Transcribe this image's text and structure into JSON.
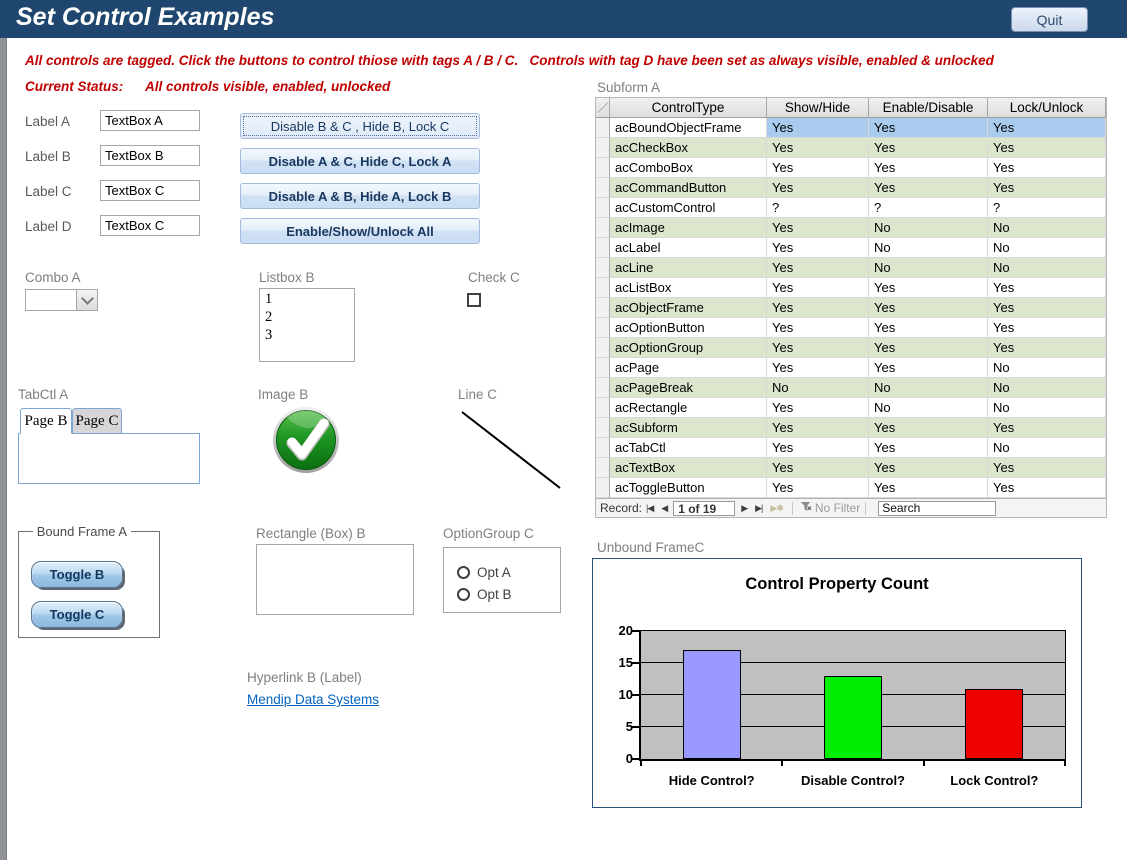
{
  "window": {
    "title": "Set Control Examples",
    "quit": "Quit"
  },
  "instructions": "All controls are tagged. Click the buttons to control thiose with tags A / B / C.   Controls with tag D have been set as always visible, enabled & unlocked",
  "status": {
    "label": "Current Status:",
    "value": "All controls visible, enabled, unlocked"
  },
  "fields": [
    {
      "label": "Label A",
      "value": "TextBox A"
    },
    {
      "label": "Label B",
      "value": "TextBox B"
    },
    {
      "label": "Label C",
      "value": "TextBox C"
    },
    {
      "label": "Label D",
      "value": "TextBox C"
    }
  ],
  "action_buttons": [
    "Disable B & C , Hide B, Lock C",
    "Disable A & C, Hide C, Lock A",
    "Disable A & B, Hide A, Lock B",
    "Enable/Show/Unlock All"
  ],
  "combo": {
    "label": "Combo A",
    "value": ""
  },
  "listbox": {
    "label": "Listbox B",
    "items": [
      "1",
      "2",
      "3"
    ]
  },
  "checkbox": {
    "label": "Check C",
    "checked": false
  },
  "tab_control": {
    "label": "TabCtl A",
    "tabs": [
      "Page B",
      "Page C"
    ],
    "active": 0
  },
  "image": {
    "label": "Image B",
    "icon": "green-check-circle"
  },
  "line": {
    "label": "Line C"
  },
  "bound_frame": {
    "label": "Bound Frame A",
    "toggles": [
      "Toggle B",
      "Toggle C"
    ]
  },
  "rectangle": {
    "label": "Rectangle (Box) B"
  },
  "option_group": {
    "label": "OptionGroup C",
    "options": [
      "Opt A",
      "Opt B"
    ]
  },
  "hyperlink": {
    "label": "Hyperlink B (Label)",
    "text": "Mendip Data Systems"
  },
  "subform": {
    "label": "Subform A",
    "columns": [
      "ControlType",
      "Show/Hide",
      "Enable/Disable",
      "Lock/Unlock"
    ],
    "rows": [
      [
        "acBoundObjectFrame",
        "Yes",
        "Yes",
        "Yes"
      ],
      [
        "acCheckBox",
        "Yes",
        "Yes",
        "Yes"
      ],
      [
        "acComboBox",
        "Yes",
        "Yes",
        "Yes"
      ],
      [
        "acCommandButton",
        "Yes",
        "Yes",
        "Yes"
      ],
      [
        "acCustomControl",
        "?",
        "?",
        "?"
      ],
      [
        "acImage",
        "Yes",
        "No",
        "No"
      ],
      [
        "acLabel",
        "Yes",
        "No",
        "No"
      ],
      [
        "acLine",
        "Yes",
        "No",
        "No"
      ],
      [
        "acListBox",
        "Yes",
        "Yes",
        "Yes"
      ],
      [
        "acObjectFrame",
        "Yes",
        "Yes",
        "Yes"
      ],
      [
        "acOptionButton",
        "Yes",
        "Yes",
        "Yes"
      ],
      [
        "acOptionGroup",
        "Yes",
        "Yes",
        "Yes"
      ],
      [
        "acPage",
        "Yes",
        "Yes",
        "No"
      ],
      [
        "acPageBreak",
        "No",
        "No",
        "No"
      ],
      [
        "acRectangle",
        "Yes",
        "No",
        "No"
      ],
      [
        "acSubform",
        "Yes",
        "Yes",
        "Yes"
      ],
      [
        "acTabCtl",
        "Yes",
        "Yes",
        "No"
      ],
      [
        "acTextBox",
        "Yes",
        "Yes",
        "Yes"
      ],
      [
        "acToggleButton",
        "Yes",
        "Yes",
        "Yes"
      ]
    ],
    "selected_row": 0,
    "nav": {
      "record_label": "Record:",
      "position": "1 of 19",
      "filter_label": "No Filter",
      "search_placeholder": "Search"
    }
  },
  "chart_frame": {
    "label": "Unbound FrameC"
  },
  "chart_data": {
    "type": "bar",
    "title": "Control Property Count",
    "categories": [
      "Hide Control?",
      "Disable Control?",
      "Lock Control?"
    ],
    "values": [
      17,
      13,
      11
    ],
    "bar_colors": [
      "#9999FF",
      "#00EE00",
      "#EE0000"
    ],
    "ylim": [
      0,
      20
    ],
    "yticks": [
      0,
      5,
      10,
      15,
      20
    ],
    "plot_background": "#C0C0C0",
    "gridlines": true,
    "legend": "none"
  },
  "colors": {
    "titlebar": "#1E466E",
    "accent_red": "#C00000",
    "row_green": "#DCE6CC",
    "row_selected": "#A9CCEE",
    "hyperlink": "#0563C1"
  }
}
